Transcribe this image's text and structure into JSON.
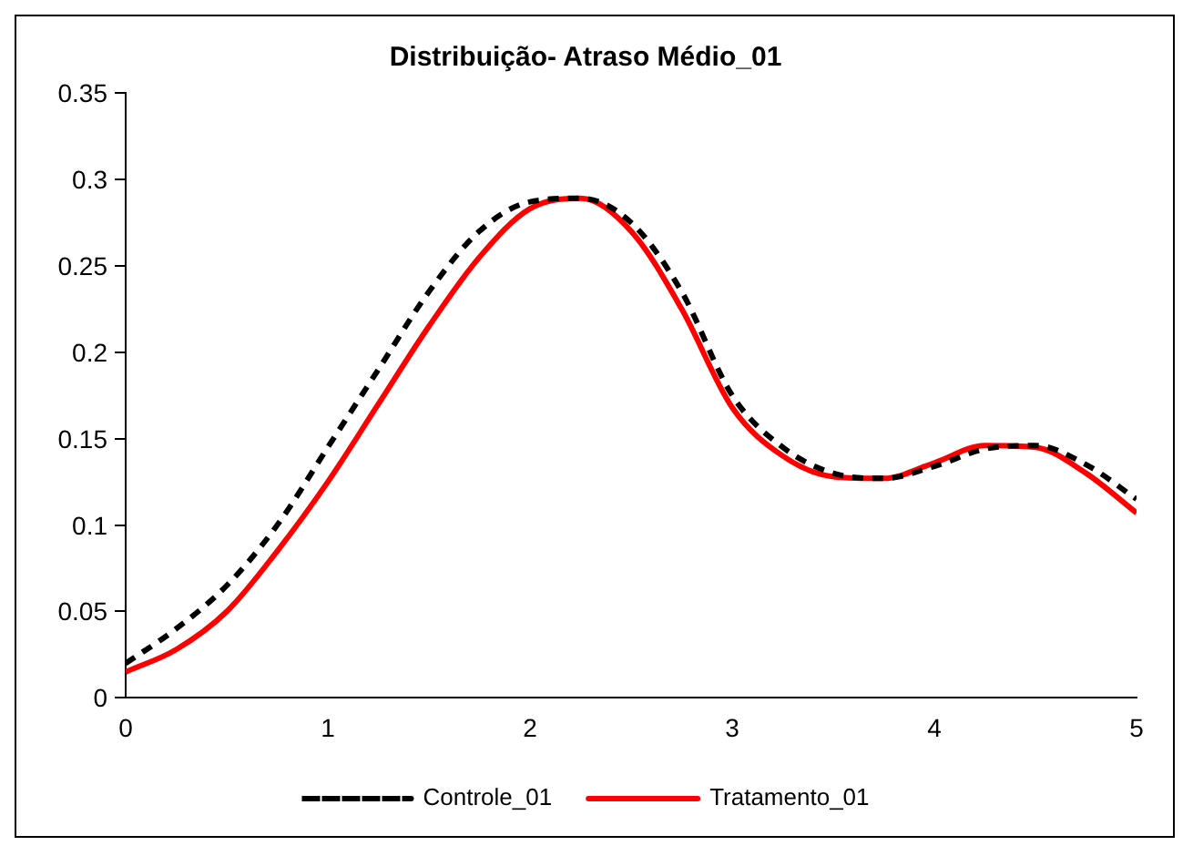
{
  "chart_data": {
    "type": "line",
    "title": "Distribuição- Atraso Médio_01",
    "x": [
      0,
      0.25,
      0.5,
      0.75,
      1,
      1.25,
      1.5,
      1.75,
      2,
      2.25,
      2.5,
      2.75,
      3,
      3.25,
      3.5,
      3.75,
      4,
      4.25,
      4.5,
      4.75,
      5
    ],
    "series": [
      {
        "name": "Controle_01",
        "color": "#000000",
        "line_style": "dashed",
        "values": [
          0.02,
          0.04,
          0.065,
          0.1,
          0.145,
          0.19,
          0.235,
          0.27,
          0.287,
          0.289,
          0.275,
          0.235,
          0.175,
          0.145,
          0.13,
          0.127,
          0.134,
          0.144,
          0.146,
          0.135,
          0.115
        ]
      },
      {
        "name": "Tratamento_01",
        "color": "#ff0000",
        "line_style": "solid",
        "values": [
          0.015,
          0.028,
          0.05,
          0.085,
          0.125,
          0.17,
          0.215,
          0.255,
          0.283,
          0.289,
          0.27,
          0.225,
          0.168,
          0.14,
          0.128,
          0.127,
          0.136,
          0.146,
          0.145,
          0.13,
          0.107
        ]
      }
    ],
    "xlim": [
      0,
      5
    ],
    "xticks": [
      0,
      1,
      2,
      3,
      4,
      5
    ],
    "ylim": [
      0,
      0.35
    ],
    "yticks": [
      0,
      0.05,
      0.1,
      0.15,
      0.2,
      0.25,
      0.3,
      0.35
    ],
    "grid": false,
    "legend": "bottom",
    "marker": "none"
  }
}
